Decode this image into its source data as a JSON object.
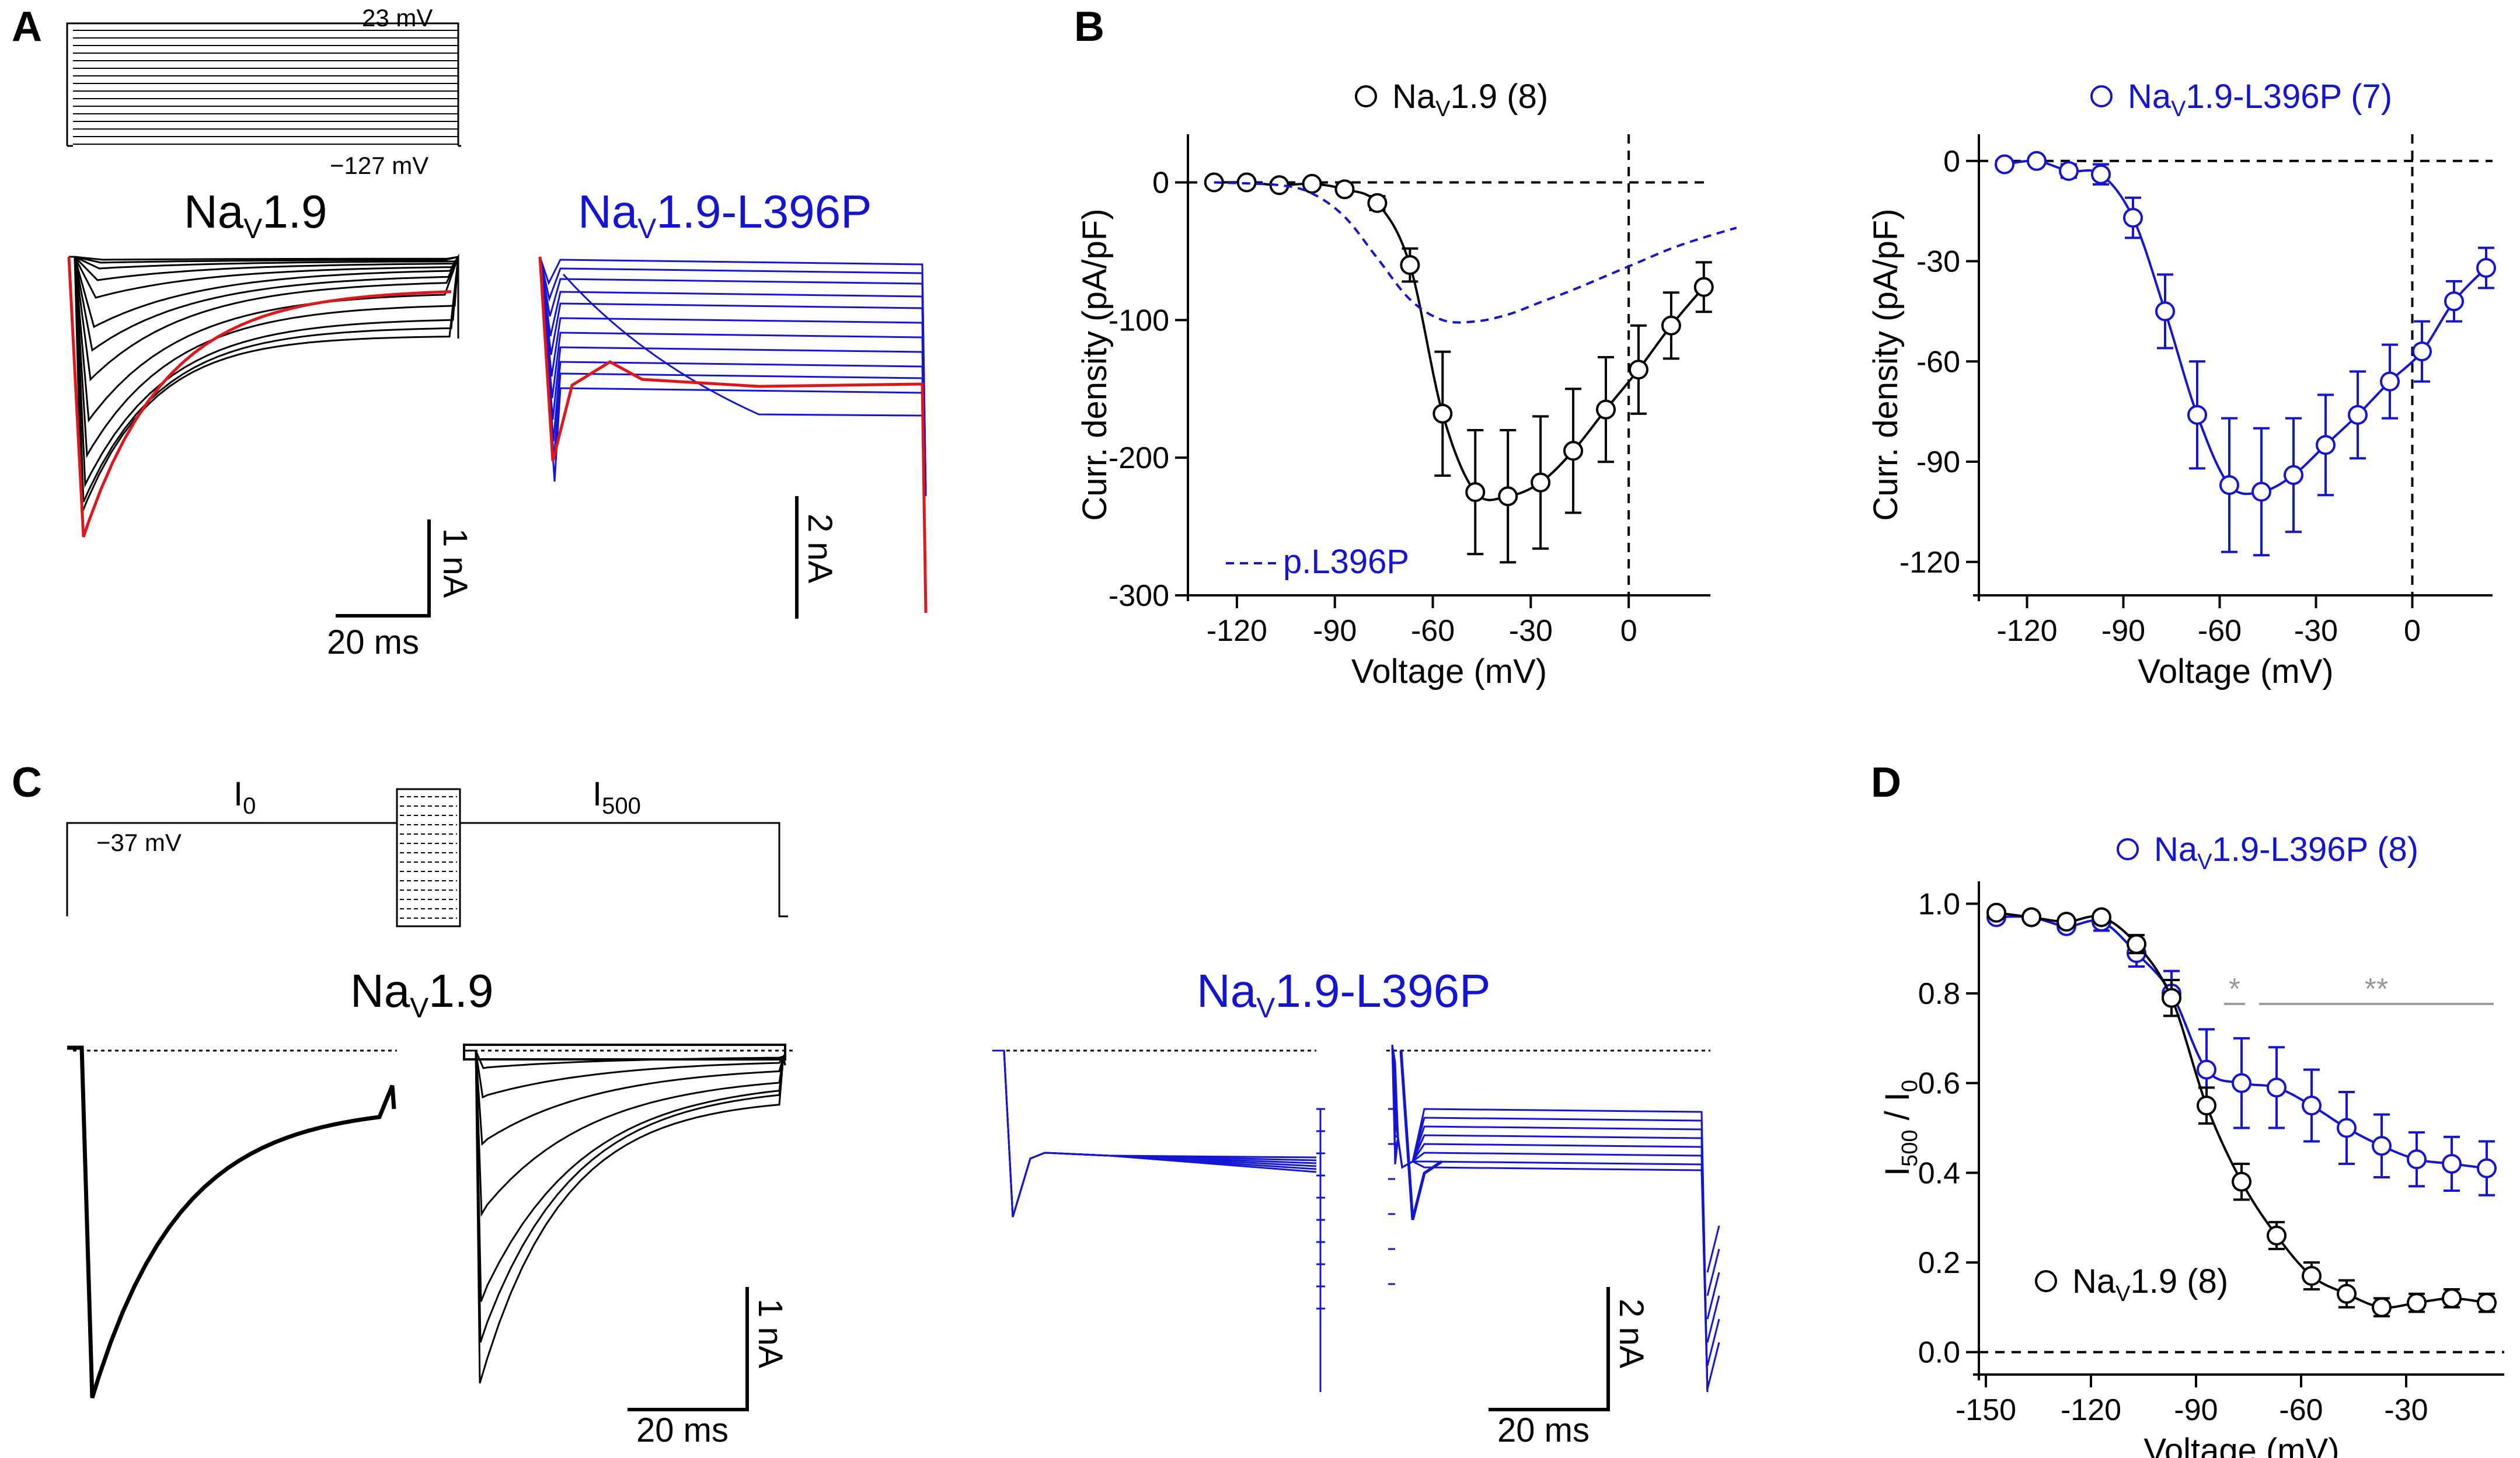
{
  "panels": {
    "a": "A",
    "b": "B",
    "c": "C",
    "d": "D"
  },
  "colors": {
    "wt": "#000000",
    "mut": "#1414d4",
    "red": "#e0161b",
    "sig": "#999999"
  },
  "panel_a": {
    "protocol_top": "23 mV",
    "protocol_bottom": "−127 mV",
    "wt_title_base": "Na",
    "wt_title_sub": "V",
    "wt_title_rest": "1.9",
    "mut_title_base": "Na",
    "mut_title_sub": "V",
    "mut_title_rest": "1.9-L396P",
    "wt_scale_y": "1 nA",
    "wt_scale_x": "20 ms",
    "mut_scale_y": "2 nA"
  },
  "panel_c": {
    "i0": "I",
    "i0_sub": "0",
    "i500": "I",
    "i500_sub": "500",
    "hold": "−37 mV",
    "wt_title_base": "Na",
    "wt_title_sub": "V",
    "wt_title_rest": "1.9",
    "mut_title_base": "Na",
    "mut_title_sub": "V",
    "mut_title_rest": "1.9-L396P",
    "wt_scale_y": "1 nA",
    "wt_scale_x": "20 ms",
    "mut_scale_y": "2 nA",
    "mut_scale_x": "20 ms"
  },
  "chart_data": [
    {
      "id": "B-left",
      "type": "line",
      "title": "",
      "xlabel": "Voltage (mV)",
      "ylabel": "Curr. density (pA/pF)",
      "xlim": [
        -135,
        25
      ],
      "ylim": [
        -300,
        35
      ],
      "xticks": [
        -120,
        -90,
        -60,
        -30,
        0
      ],
      "xtick_labels": [
        "-120",
        "-90",
        "-60",
        "-30",
        "0"
      ],
      "yticks": [
        0,
        -100,
        -200,
        -300
      ],
      "ytick_labels": [
        "0",
        "-100",
        "-200",
        "-300"
      ],
      "legend": {
        "prefix": "Na",
        "sub": "V",
        "rest": "1.9 (8)",
        "placement": "top"
      },
      "annotation": "p.L396P",
      "series": [
        {
          "name": "NaV1.9 (8)",
          "color": "#000000",
          "x": [
            -127,
            -117,
            -107,
            -97,
            -87,
            -77,
            -67,
            -57,
            -47,
            -37,
            -27,
            -17,
            -7,
            3,
            13,
            23
          ],
          "y": [
            0,
            0,
            -2,
            -1,
            -5,
            -15,
            -60,
            -168,
            -225,
            -228,
            -218,
            -195,
            -165,
            -136,
            -104,
            -76
          ],
          "err": [
            0,
            0,
            1,
            1,
            2,
            5,
            12,
            45,
            45,
            48,
            48,
            45,
            38,
            32,
            24,
            18
          ]
        },
        {
          "name": "p.L396P",
          "color": "#1414d4",
          "style": "dashed",
          "x": [
            -127,
            -107,
            -97,
            -87,
            -77,
            -67,
            -57,
            -47,
            -37,
            -27,
            -17,
            -7,
            3,
            13,
            23,
            33
          ],
          "y": [
            0,
            -2,
            -8,
            -25,
            -55,
            -85,
            -100,
            -101,
            -96,
            -87,
            -78,
            -68,
            -58,
            -48,
            -40,
            -33
          ]
        }
      ]
    },
    {
      "id": "B-right",
      "type": "line",
      "title": "",
      "xlabel": "Voltage (mV)",
      "ylabel": "Curr. density (pA/pF)",
      "xlim": [
        -135,
        25
      ],
      "ylim": [
        -130,
        8
      ],
      "xticks": [
        -120,
        -90,
        -60,
        -30,
        0
      ],
      "xtick_labels": [
        "-120",
        "-90",
        "-60",
        "-30",
        "0"
      ],
      "yticks": [
        0,
        -30,
        -60,
        -90,
        -120
      ],
      "ytick_labels": [
        "0",
        "-30",
        "-60",
        "-90",
        "-120"
      ],
      "legend": {
        "prefix": "Na",
        "sub": "V",
        "rest": "1.9-L396P (7)",
        "placement": "top"
      },
      "series": [
        {
          "name": "NaV1.9-L396P (7)",
          "color": "#1414d4",
          "x": [
            -127,
            -117,
            -107,
            -97,
            -87,
            -77,
            -67,
            -57,
            -47,
            -37,
            -27,
            -17,
            -7,
            3,
            13,
            23
          ],
          "y": [
            -1,
            0,
            -3,
            -4,
            -17,
            -45,
            -76,
            -97,
            -99,
            -94,
            -85,
            -76,
            -66,
            -57,
            -42,
            -32
          ],
          "err": [
            1,
            1,
            2,
            3,
            6,
            11,
            16,
            20,
            19,
            17,
            15,
            13,
            11,
            9,
            6,
            6
          ]
        }
      ]
    },
    {
      "id": "D",
      "type": "line",
      "title": "",
      "xlabel": "Voltage (mV)",
      "ylabel_base": "I",
      "ylabel_sub": "500",
      "ylabel_mid": " / I",
      "ylabel_sub2": "0",
      "xlim": [
        -152,
        -2
      ],
      "ylim": [
        -0.05,
        1.05
      ],
      "xticks": [
        -150,
        -120,
        -90,
        -60,
        -30
      ],
      "xtick_labels": [
        "-150",
        "-120",
        "-90",
        "-60",
        "-30"
      ],
      "yticks": [
        0.0,
        0.2,
        0.4,
        0.6,
        0.8,
        1.0
      ],
      "ytick_labels": [
        "0.0",
        "0.2",
        "0.4",
        "0.6",
        "0.8",
        "1.0"
      ],
      "legend_mut": {
        "prefix": "Na",
        "sub": "V",
        "rest": "1.9-L396P (8)",
        "placement": "top-right"
      },
      "legend_wt": {
        "prefix": "Na",
        "sub": "V",
        "rest": "1.9 (8)",
        "placement": "bottom-left"
      },
      "significance": [
        {
          "label": "*",
          "x_range": [
            -82,
            -76
          ]
        },
        {
          "label": "**",
          "x_range": [
            -72,
            -5
          ]
        }
      ],
      "series": [
        {
          "name": "NaV1.9-L396P (8)",
          "color": "#1414d4",
          "x": [
            -147,
            -137,
            -127,
            -117,
            -107,
            -97,
            -87,
            -77,
            -67,
            -57,
            -47,
            -37,
            -27,
            -17,
            -7
          ],
          "y": [
            0.97,
            0.97,
            0.95,
            0.96,
            0.89,
            0.8,
            0.63,
            0.6,
            0.59,
            0.55,
            0.5,
            0.46,
            0.43,
            0.42,
            0.41
          ],
          "err": [
            0.01,
            0.01,
            0.01,
            0.02,
            0.03,
            0.05,
            0.09,
            0.1,
            0.09,
            0.08,
            0.08,
            0.07,
            0.06,
            0.06,
            0.06
          ]
        },
        {
          "name": "NaV1.9 (8)",
          "color": "#000000",
          "x": [
            -147,
            -137,
            -127,
            -117,
            -107,
            -97,
            -87,
            -77,
            -67,
            -57,
            -47,
            -37,
            -27,
            -17,
            -7
          ],
          "y": [
            0.98,
            0.97,
            0.96,
            0.97,
            0.91,
            0.79,
            0.55,
            0.38,
            0.26,
            0.17,
            0.13,
            0.1,
            0.11,
            0.12,
            0.11
          ],
          "err": [
            0.01,
            0.01,
            0.01,
            0.01,
            0.02,
            0.04,
            0.04,
            0.04,
            0.03,
            0.03,
            0.03,
            0.02,
            0.02,
            0.02,
            0.02
          ]
        }
      ]
    }
  ]
}
